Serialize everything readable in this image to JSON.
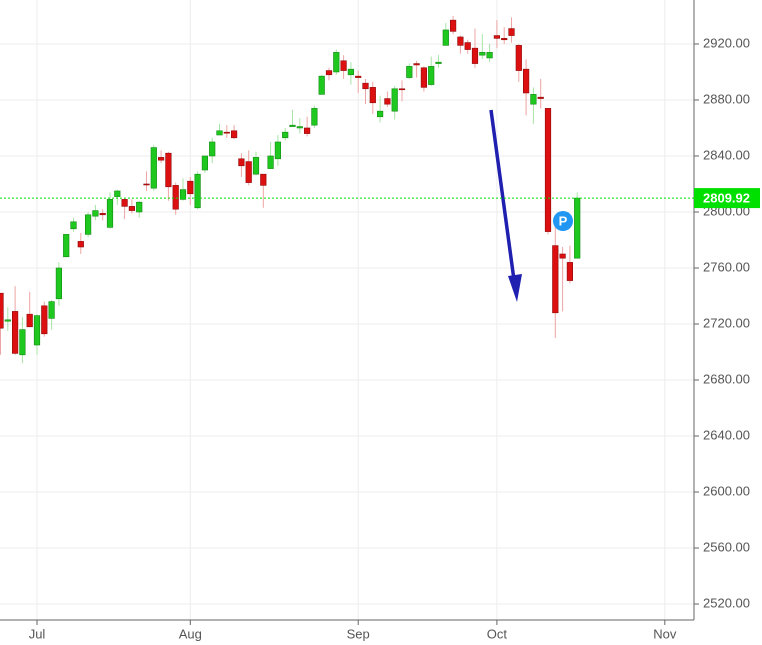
{
  "chart_data": {
    "type": "candlestick",
    "categories": [
      null,
      null,
      null,
      null,
      null,
      "Jul",
      null,
      null,
      null,
      null,
      null,
      null,
      null,
      null,
      null,
      null,
      null,
      null,
      null,
      null,
      null,
      null,
      null,
      null,
      null,
      null,
      "Aug",
      null,
      null,
      null,
      null,
      null,
      null,
      null,
      null,
      null,
      null,
      null,
      null,
      null,
      null,
      null,
      null,
      null,
      null,
      null,
      null,
      null,
      null,
      "Sep",
      null,
      null,
      null,
      null,
      null,
      null,
      null,
      null,
      null,
      null,
      null,
      null,
      null,
      null,
      null,
      null,
      null,
      null,
      "Oct",
      null,
      null,
      null,
      null,
      null,
      null,
      null,
      null,
      null,
      null,
      null,
      null,
      null,
      null,
      null,
      null,
      null,
      null,
      null,
      null,
      null,
      null,
      "Nov",
      null,
      null
    ],
    "open": [
      2742,
      2722,
      2729,
      2698,
      2727,
      2705,
      2733,
      2724,
      2738,
      2768,
      2788,
      2779,
      2784,
      2797,
      2799,
      2789,
      2811,
      2809,
      2804,
      2800,
      2820,
      2817,
      2839,
      2842,
      2819,
      2809,
      2822,
      2803,
      2830,
      2840,
      2855,
      2857,
      2858,
      2838,
      2836,
      2827,
      2827,
      2831,
      2838,
      2853,
      2861,
      2860,
      2860,
      2862,
      2884,
      2901,
      2900,
      2908,
      2898,
      2897,
      2892,
      2889,
      2868,
      2881,
      2872,
      2888,
      2896,
      2906,
      2903,
      2891,
      2906,
      2919,
      2937,
      2925,
      2921,
      2917,
      2912,
      2910,
      2926,
      2924,
      2931,
      2919,
      2902,
      2877,
      2882,
      2874,
      2776,
      2770,
      2764,
      2767,
      null,
      null,
      null,
      null,
      null,
      null,
      null,
      null,
      null,
      null,
      null,
      null,
      null,
      null
    ],
    "high": [
      2742,
      2732,
      2747,
      2725,
      2743,
      2727,
      2736,
      2737,
      2764,
      2784,
      2796,
      2785,
      2800,
      2805,
      2802,
      2814,
      2816,
      2810,
      2809,
      2808,
      2829,
      2848,
      2844,
      2843,
      2821,
      2824,
      2825,
      2829,
      2840,
      2853,
      2863,
      2862,
      2862,
      2842,
      2844,
      2843,
      2827,
      2850,
      2855,
      2860,
      2873,
      2867,
      2868,
      2876,
      2898,
      2903,
      2916,
      2912,
      2907,
      2901,
      2895,
      2893,
      2883,
      2886,
      2890,
      2894,
      2906,
      2908,
      2904,
      2911,
      2912,
      2935,
      2940,
      2926,
      2923,
      2931,
      2927,
      2920,
      2937,
      2932,
      2939,
      2920,
      2909,
      2889,
      2895,
      2874,
      2795,
      2775,
      2776,
      2814,
      null,
      null,
      null,
      null,
      null,
      null,
      null,
      null,
      null,
      null,
      null,
      null,
      null,
      null
    ],
    "low": [
      2698,
      2715,
      2698,
      2692,
      2718,
      2698,
      2711,
      2716,
      2733,
      2768,
      2786,
      2770,
      2782,
      2794,
      2794,
      2788,
      2805,
      2795,
      2799,
      2796,
      2815,
      2815,
      2835,
      2808,
      2798,
      2808,
      2805,
      2802,
      2828,
      2835,
      2855,
      2853,
      2852,
      2825,
      2819,
      2826,
      2803,
      2831,
      2833,
      2851,
      2861,
      2856,
      2854,
      2860,
      2884,
      2894,
      2898,
      2895,
      2891,
      2885,
      2877,
      2870,
      2864,
      2875,
      2866,
      2879,
      2895,
      2896,
      2886,
      2890,
      2903,
      2919,
      2927,
      2913,
      2913,
      2903,
      2909,
      2907,
      2917,
      2920,
      2921,
      2893,
      2869,
      2863,
      2874,
      2784,
      2710,
      2729,
      2749,
      2767,
      null,
      null,
      null,
      null,
      null,
      null,
      null,
      null,
      null,
      null,
      null,
      null,
      null,
      null
    ],
    "close": [
      2717,
      2723,
      2699,
      2716,
      2718,
      2726,
      2713,
      2736,
      2760,
      2784,
      2793,
      2775,
      2798,
      2801,
      2798,
      2809,
      2815,
      2804,
      2801,
      2807,
      2820,
      2846,
      2837,
      2818,
      2802,
      2816,
      2813,
      2827,
      2840,
      2850,
      2858,
      2857,
      2853,
      2833,
      2821,
      2839,
      2819,
      2840,
      2850,
      2857,
      2862,
      2861,
      2856,
      2874,
      2897,
      2898,
      2914,
      2901,
      2902,
      2896,
      2888,
      2878,
      2872,
      2877,
      2888,
      2888,
      2904,
      2905,
      2889,
      2904,
      2907,
      2930,
      2929,
      2919,
      2916,
      2906,
      2914,
      2914,
      2924,
      2923,
      2926,
      2901,
      2885,
      2884,
      2881,
      2786,
      2728,
      2767,
      2751,
      2809.92,
      null,
      null,
      null,
      null,
      null,
      null,
      null,
      null,
      null,
      null,
      null,
      null,
      null,
      null
    ],
    "up_color": "#1ec81e",
    "down_color": "#dc1010",
    "up_wick_color": "#a6e4a6",
    "down_wick_color": "#eea4a4",
    "ylim": [
      2508.6,
      2951.4
    ],
    "yticks": [
      {
        "value": 2520,
        "label": "2520.00"
      },
      {
        "value": 2560,
        "label": "2560.00"
      },
      {
        "value": 2600,
        "label": "2600.00"
      },
      {
        "value": 2640,
        "label": "2640.00"
      },
      {
        "value": 2680,
        "label": "2680.00"
      },
      {
        "value": 2720,
        "label": "2720.00"
      },
      {
        "value": 2760,
        "label": "2760.00"
      },
      {
        "value": 2800,
        "label": "2800.00"
      },
      {
        "value": 2840,
        "label": "2840.00"
      },
      {
        "value": 2880,
        "label": "2880.00"
      },
      {
        "value": 2920,
        "label": "2920.00"
      }
    ],
    "grid": true,
    "last_price": 2809.92,
    "last_price_color": "#00e000",
    "marker_label": "P"
  }
}
